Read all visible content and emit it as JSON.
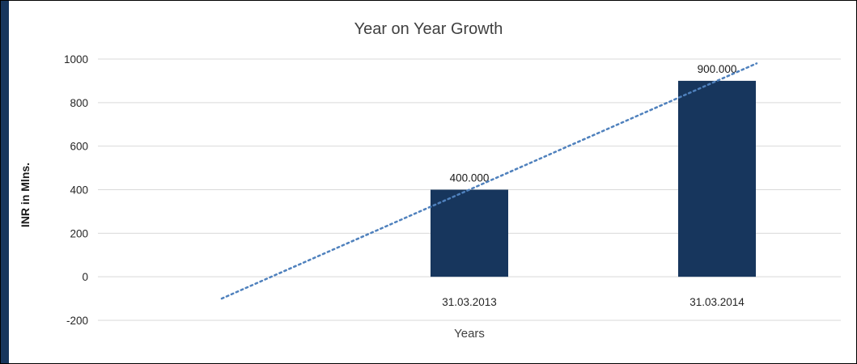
{
  "frame": {
    "accent_color": "#17365D"
  },
  "chart_data": {
    "type": "bar",
    "title": "Year on Year Growth",
    "categories": [
      "31.03.2013",
      "31.03.2014"
    ],
    "values": [
      400,
      900
    ],
    "data_labels": [
      "400.000",
      "900.000"
    ],
    "xlabel": "Years",
    "ylabel": "INR in Mlns.",
    "ylim": [
      -200,
      1000
    ],
    "yticks": [
      1000,
      800,
      600,
      400,
      200,
      0,
      -200
    ],
    "grid": "horizontal",
    "legend": "none",
    "bar_color": "#17365D",
    "gridline_color": "#D9D9D9",
    "trendline": {
      "type": "linear",
      "style": "dotted",
      "color": "#4F81BD"
    }
  }
}
